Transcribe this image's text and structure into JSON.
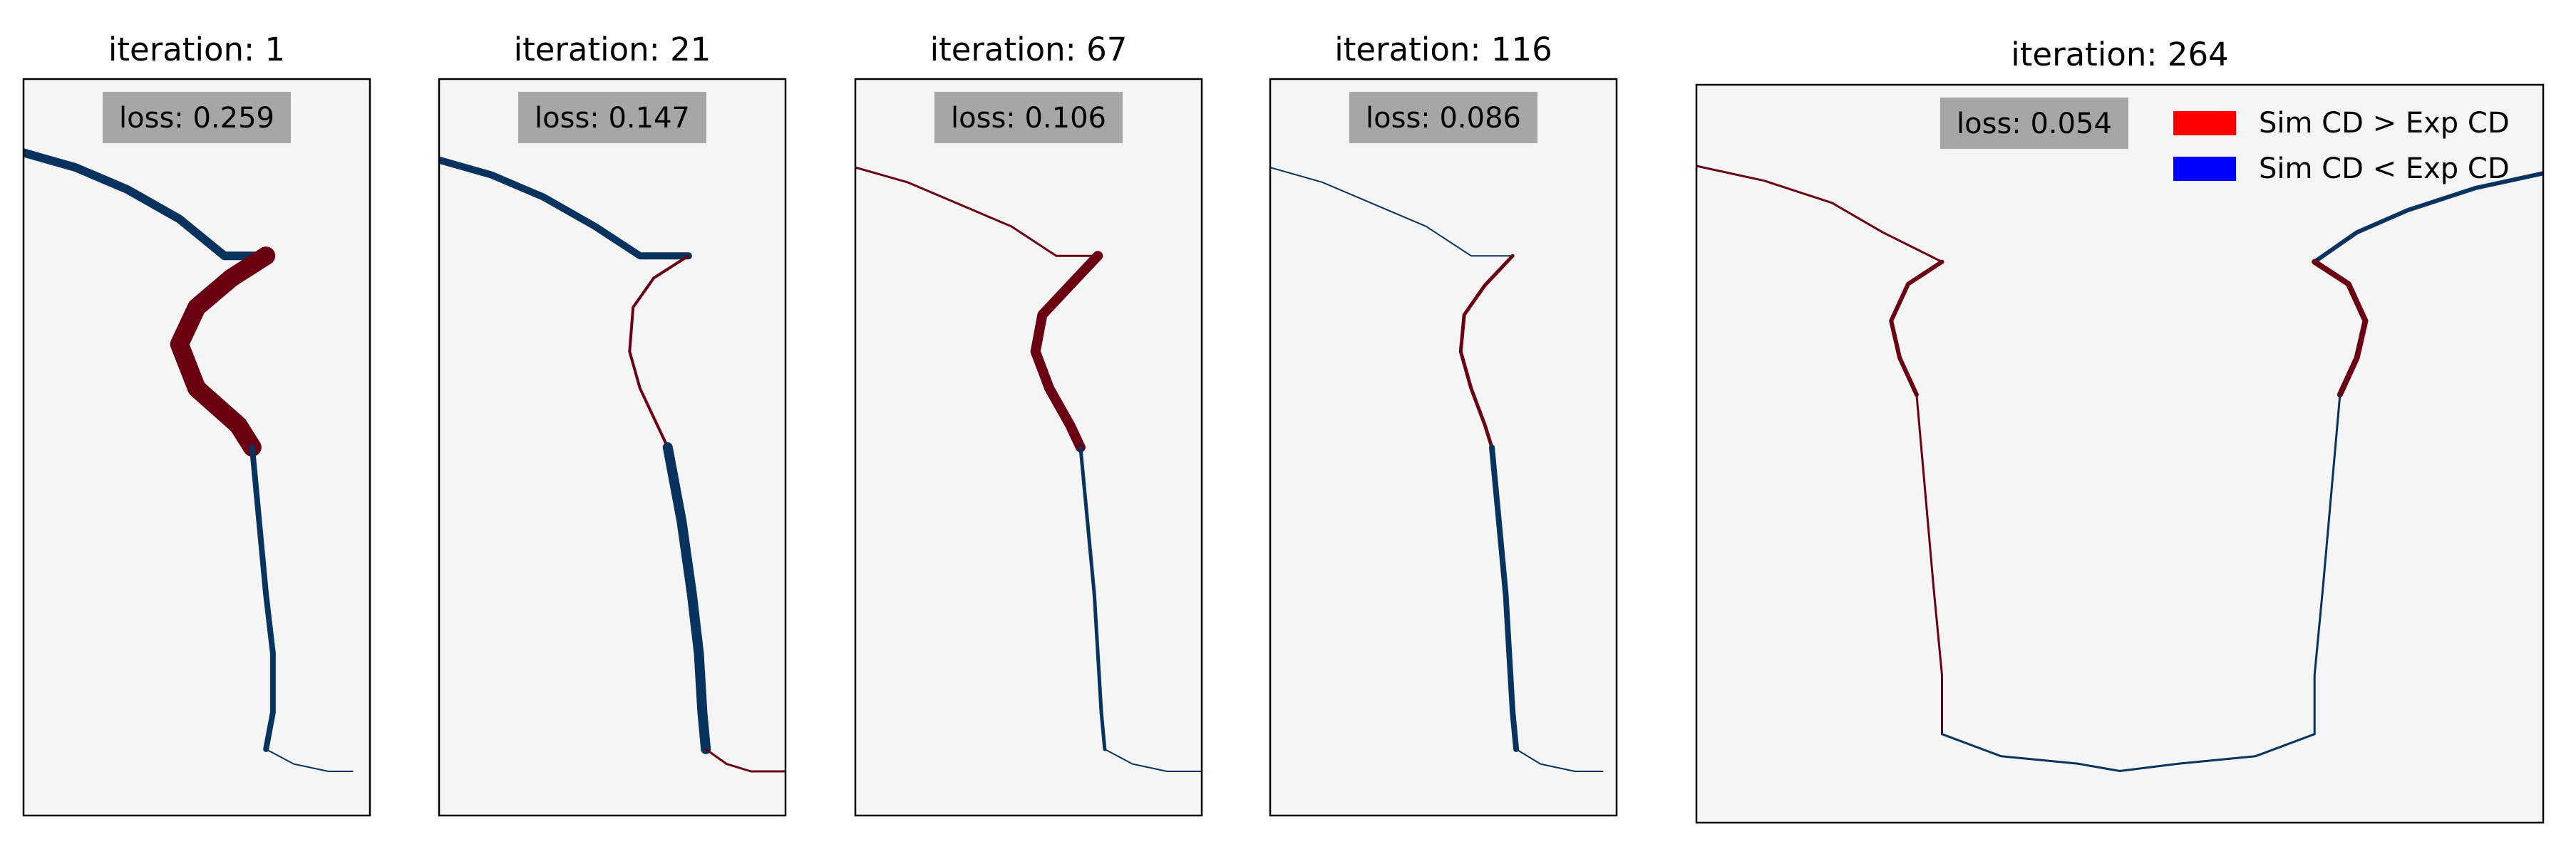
{
  "figure": {
    "colors": {
      "background": "#f5f5f5",
      "over": "#6b0012",
      "under": "#08335e",
      "frame": "#000000",
      "loss_box": "#a6a6a6",
      "legend_over": "#ff0000",
      "legend_under": "#0000ff"
    },
    "legend": {
      "over_label": "Sim CD > Exp CD",
      "under_label": "Sim CD < Exp CD",
      "placement": "top-right of last panel"
    }
  },
  "chart_data": [
    {
      "type": "heatmap",
      "title": "iteration: 1",
      "loss_label": "loss: 0.259",
      "loss": 0.259,
      "half_profile": true,
      "profile": {
        "top": {
          "x": [
            0.0,
            0.15,
            0.3,
            0.45,
            0.58,
            0.7
          ],
          "y": [
            0.1,
            0.12,
            0.15,
            0.19,
            0.24,
            0.24
          ]
        },
        "neck": {
          "x": [
            0.7,
            0.6,
            0.5,
            0.45,
            0.5,
            0.62,
            0.66
          ],
          "y": [
            0.24,
            0.27,
            0.31,
            0.36,
            0.42,
            0.47,
            0.5
          ]
        },
        "side": {
          "x": [
            0.66,
            0.68,
            0.7,
            0.72,
            0.72,
            0.7
          ],
          "y": [
            0.5,
            0.6,
            0.7,
            0.78,
            0.86,
            0.91
          ]
        },
        "foot": {
          "x": [
            0.7,
            0.78,
            0.88,
            0.95
          ],
          "y": [
            0.91,
            0.93,
            0.94,
            0.94
          ]
        }
      },
      "error": {
        "top": {
          "side": "under",
          "w": 12
        },
        "neck": {
          "side": "over",
          "w": 26
        },
        "side": {
          "side": "under",
          "w": 8
        },
        "foot": {
          "side": "under",
          "w": 2
        }
      }
    },
    {
      "type": "heatmap",
      "title": "iteration: 21",
      "loss_label": "loss: 0.147",
      "loss": 0.147,
      "half_profile": true,
      "profile": {
        "top": {
          "x": [
            0.0,
            0.15,
            0.3,
            0.45,
            0.58,
            0.72
          ],
          "y": [
            0.11,
            0.13,
            0.16,
            0.2,
            0.24,
            0.24
          ]
        },
        "neck": {
          "x": [
            0.72,
            0.62,
            0.56,
            0.55,
            0.58,
            0.63,
            0.66
          ],
          "y": [
            0.24,
            0.27,
            0.31,
            0.37,
            0.42,
            0.47,
            0.5
          ]
        },
        "side": {
          "x": [
            0.66,
            0.7,
            0.73,
            0.75,
            0.76,
            0.77
          ],
          "y": [
            0.5,
            0.6,
            0.7,
            0.78,
            0.86,
            0.91
          ]
        },
        "foot": {
          "x": [
            0.77,
            0.83,
            0.9,
            1.0
          ],
          "y": [
            0.91,
            0.93,
            0.94,
            0.94
          ]
        }
      },
      "error": {
        "top": {
          "side": "under",
          "w": 10
        },
        "neck": {
          "side": "over",
          "w": 4
        },
        "side": {
          "side": "under",
          "w": 14
        },
        "foot": {
          "side": "over",
          "w": 3
        }
      }
    },
    {
      "type": "heatmap",
      "title": "iteration: 67",
      "loss_label": "loss: 0.106",
      "loss": 0.106,
      "half_profile": true,
      "profile": {
        "top": {
          "x": [
            0.0,
            0.15,
            0.3,
            0.45,
            0.58,
            0.7
          ],
          "y": [
            0.12,
            0.14,
            0.17,
            0.2,
            0.24,
            0.24
          ]
        },
        "neck": {
          "x": [
            0.7,
            0.62,
            0.54,
            0.52,
            0.56,
            0.62,
            0.65
          ],
          "y": [
            0.24,
            0.28,
            0.32,
            0.37,
            0.42,
            0.47,
            0.5
          ]
        },
        "side": {
          "x": [
            0.65,
            0.67,
            0.69,
            0.7,
            0.71,
            0.72
          ],
          "y": [
            0.5,
            0.6,
            0.7,
            0.78,
            0.86,
            0.91
          ]
        },
        "foot": {
          "x": [
            0.72,
            0.8,
            0.9,
            1.0
          ],
          "y": [
            0.91,
            0.93,
            0.94,
            0.94
          ]
        }
      },
      "error": {
        "top": {
          "side": "over",
          "w": 3
        },
        "neck": {
          "side": "over",
          "w": 14
        },
        "side": {
          "side": "under",
          "w": 5
        },
        "foot": {
          "side": "under",
          "w": 2
        }
      }
    },
    {
      "type": "heatmap",
      "title": "iteration: 116",
      "loss_label": "loss: 0.086",
      "loss": 0.086,
      "half_profile": true,
      "profile": {
        "top": {
          "x": [
            0.0,
            0.15,
            0.3,
            0.45,
            0.58,
            0.7
          ],
          "y": [
            0.12,
            0.14,
            0.17,
            0.2,
            0.24,
            0.24
          ]
        },
        "neck": {
          "x": [
            0.7,
            0.62,
            0.56,
            0.55,
            0.58,
            0.62,
            0.64
          ],
          "y": [
            0.24,
            0.28,
            0.32,
            0.37,
            0.42,
            0.47,
            0.5
          ]
        },
        "side": {
          "x": [
            0.64,
            0.66,
            0.68,
            0.69,
            0.7,
            0.71
          ],
          "y": [
            0.5,
            0.6,
            0.7,
            0.78,
            0.86,
            0.91
          ]
        },
        "foot": {
          "x": [
            0.71,
            0.78,
            0.88,
            0.96
          ],
          "y": [
            0.91,
            0.93,
            0.94,
            0.94
          ]
        }
      },
      "error": {
        "top": {
          "side": "under",
          "w": 2
        },
        "neck": {
          "side": "over",
          "w": 5
        },
        "side": {
          "side": "under",
          "w": 8
        },
        "foot": {
          "side": "under",
          "w": 2
        }
      }
    },
    {
      "type": "heatmap",
      "title": "iteration: 264",
      "loss_label": "loss: 0.054",
      "loss": 0.054,
      "half_profile": false,
      "profile": {
        "left": {
          "top": {
            "x": [
              0.0,
              0.08,
              0.16,
              0.22,
              0.29
            ],
            "y": [
              0.11,
              0.13,
              0.16,
              0.2,
              0.24
            ]
          },
          "neck": {
            "x": [
              0.29,
              0.25,
              0.23,
              0.24,
              0.26
            ],
            "y": [
              0.24,
              0.27,
              0.32,
              0.37,
              0.42
            ]
          },
          "side": {
            "x": [
              0.26,
              0.27,
              0.28,
              0.29,
              0.29
            ],
            "y": [
              0.42,
              0.55,
              0.68,
              0.8,
              0.88
            ]
          },
          "foot": {
            "x": [
              0.29,
              0.36,
              0.45,
              0.5
            ],
            "y": [
              0.88,
              0.91,
              0.92,
              0.93
            ]
          }
        },
        "right": {
          "top": {
            "x": [
              1.0,
              0.92,
              0.84,
              0.78,
              0.73
            ],
            "y": [
              0.12,
              0.14,
              0.17,
              0.2,
              0.24
            ]
          },
          "neck": {
            "x": [
              0.73,
              0.77,
              0.79,
              0.78,
              0.76
            ],
            "y": [
              0.24,
              0.27,
              0.32,
              0.37,
              0.42
            ]
          },
          "side": {
            "x": [
              0.76,
              0.75,
              0.74,
              0.73,
              0.73
            ],
            "y": [
              0.42,
              0.55,
              0.68,
              0.8,
              0.88
            ]
          },
          "foot": {
            "x": [
              0.73,
              0.66,
              0.57,
              0.5
            ],
            "y": [
              0.88,
              0.91,
              0.92,
              0.93
            ]
          }
        }
      },
      "error": {
        "left": {
          "top": {
            "side": "over",
            "w": 3
          },
          "neck": {
            "side": "over",
            "w": 6
          },
          "side": {
            "side": "over",
            "w": 3
          },
          "foot": {
            "side": "under",
            "w": 3
          }
        },
        "right": {
          "top": {
            "side": "under",
            "w": 6
          },
          "neck": {
            "side": "over",
            "w": 8
          },
          "side": {
            "side": "under",
            "w": 3
          },
          "foot": {
            "side": "under",
            "w": 3
          }
        }
      }
    }
  ]
}
